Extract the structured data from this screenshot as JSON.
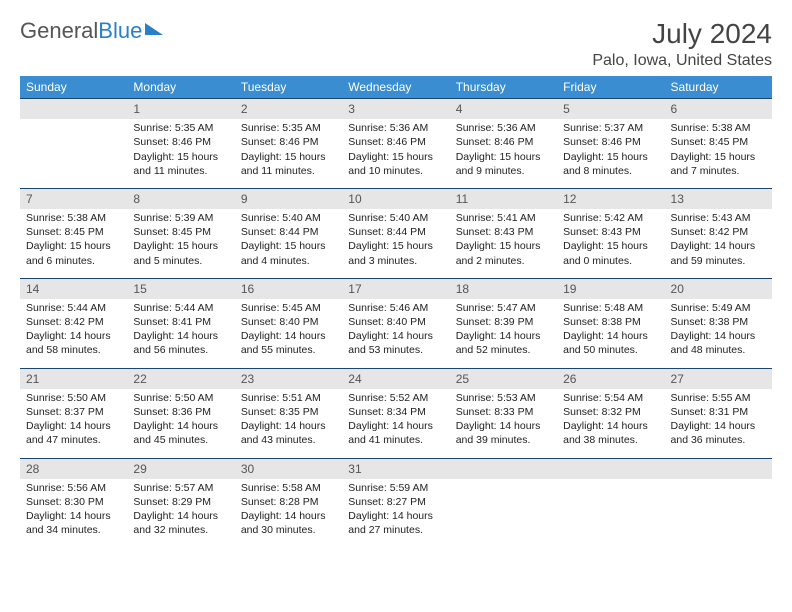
{
  "logo": {
    "text_general": "General",
    "text_blue": "Blue"
  },
  "title": "July 2024",
  "location": "Palo, Iowa, United States",
  "colors": {
    "header_bg": "#3a8dd0",
    "header_text": "#ffffff",
    "daynum_bg": "#e6e6e6",
    "row_border": "#19476f",
    "text": "#222222",
    "logo_blue": "#2a7fc9"
  },
  "day_headers": [
    "Sunday",
    "Monday",
    "Tuesday",
    "Wednesday",
    "Thursday",
    "Friday",
    "Saturday"
  ],
  "weeks": [
    [
      null,
      {
        "n": "1",
        "sunrise": "5:35 AM",
        "sunset": "8:46 PM",
        "daylight": "15 hours and 11 minutes."
      },
      {
        "n": "2",
        "sunrise": "5:35 AM",
        "sunset": "8:46 PM",
        "daylight": "15 hours and 11 minutes."
      },
      {
        "n": "3",
        "sunrise": "5:36 AM",
        "sunset": "8:46 PM",
        "daylight": "15 hours and 10 minutes."
      },
      {
        "n": "4",
        "sunrise": "5:36 AM",
        "sunset": "8:46 PM",
        "daylight": "15 hours and 9 minutes."
      },
      {
        "n": "5",
        "sunrise": "5:37 AM",
        "sunset": "8:46 PM",
        "daylight": "15 hours and 8 minutes."
      },
      {
        "n": "6",
        "sunrise": "5:38 AM",
        "sunset": "8:45 PM",
        "daylight": "15 hours and 7 minutes."
      }
    ],
    [
      {
        "n": "7",
        "sunrise": "5:38 AM",
        "sunset": "8:45 PM",
        "daylight": "15 hours and 6 minutes."
      },
      {
        "n": "8",
        "sunrise": "5:39 AM",
        "sunset": "8:45 PM",
        "daylight": "15 hours and 5 minutes."
      },
      {
        "n": "9",
        "sunrise": "5:40 AM",
        "sunset": "8:44 PM",
        "daylight": "15 hours and 4 minutes."
      },
      {
        "n": "10",
        "sunrise": "5:40 AM",
        "sunset": "8:44 PM",
        "daylight": "15 hours and 3 minutes."
      },
      {
        "n": "11",
        "sunrise": "5:41 AM",
        "sunset": "8:43 PM",
        "daylight": "15 hours and 2 minutes."
      },
      {
        "n": "12",
        "sunrise": "5:42 AM",
        "sunset": "8:43 PM",
        "daylight": "15 hours and 0 minutes."
      },
      {
        "n": "13",
        "sunrise": "5:43 AM",
        "sunset": "8:42 PM",
        "daylight": "14 hours and 59 minutes."
      }
    ],
    [
      {
        "n": "14",
        "sunrise": "5:44 AM",
        "sunset": "8:42 PM",
        "daylight": "14 hours and 58 minutes."
      },
      {
        "n": "15",
        "sunrise": "5:44 AM",
        "sunset": "8:41 PM",
        "daylight": "14 hours and 56 minutes."
      },
      {
        "n": "16",
        "sunrise": "5:45 AM",
        "sunset": "8:40 PM",
        "daylight": "14 hours and 55 minutes."
      },
      {
        "n": "17",
        "sunrise": "5:46 AM",
        "sunset": "8:40 PM",
        "daylight": "14 hours and 53 minutes."
      },
      {
        "n": "18",
        "sunrise": "5:47 AM",
        "sunset": "8:39 PM",
        "daylight": "14 hours and 52 minutes."
      },
      {
        "n": "19",
        "sunrise": "5:48 AM",
        "sunset": "8:38 PM",
        "daylight": "14 hours and 50 minutes."
      },
      {
        "n": "20",
        "sunrise": "5:49 AM",
        "sunset": "8:38 PM",
        "daylight": "14 hours and 48 minutes."
      }
    ],
    [
      {
        "n": "21",
        "sunrise": "5:50 AM",
        "sunset": "8:37 PM",
        "daylight": "14 hours and 47 minutes."
      },
      {
        "n": "22",
        "sunrise": "5:50 AM",
        "sunset": "8:36 PM",
        "daylight": "14 hours and 45 minutes."
      },
      {
        "n": "23",
        "sunrise": "5:51 AM",
        "sunset": "8:35 PM",
        "daylight": "14 hours and 43 minutes."
      },
      {
        "n": "24",
        "sunrise": "5:52 AM",
        "sunset": "8:34 PM",
        "daylight": "14 hours and 41 minutes."
      },
      {
        "n": "25",
        "sunrise": "5:53 AM",
        "sunset": "8:33 PM",
        "daylight": "14 hours and 39 minutes."
      },
      {
        "n": "26",
        "sunrise": "5:54 AM",
        "sunset": "8:32 PM",
        "daylight": "14 hours and 38 minutes."
      },
      {
        "n": "27",
        "sunrise": "5:55 AM",
        "sunset": "8:31 PM",
        "daylight": "14 hours and 36 minutes."
      }
    ],
    [
      {
        "n": "28",
        "sunrise": "5:56 AM",
        "sunset": "8:30 PM",
        "daylight": "14 hours and 34 minutes."
      },
      {
        "n": "29",
        "sunrise": "5:57 AM",
        "sunset": "8:29 PM",
        "daylight": "14 hours and 32 minutes."
      },
      {
        "n": "30",
        "sunrise": "5:58 AM",
        "sunset": "8:28 PM",
        "daylight": "14 hours and 30 minutes."
      },
      {
        "n": "31",
        "sunrise": "5:59 AM",
        "sunset": "8:27 PM",
        "daylight": "14 hours and 27 minutes."
      },
      null,
      null,
      null
    ]
  ],
  "labels": {
    "sunrise": "Sunrise:",
    "sunset": "Sunset:",
    "daylight": "Daylight:"
  }
}
